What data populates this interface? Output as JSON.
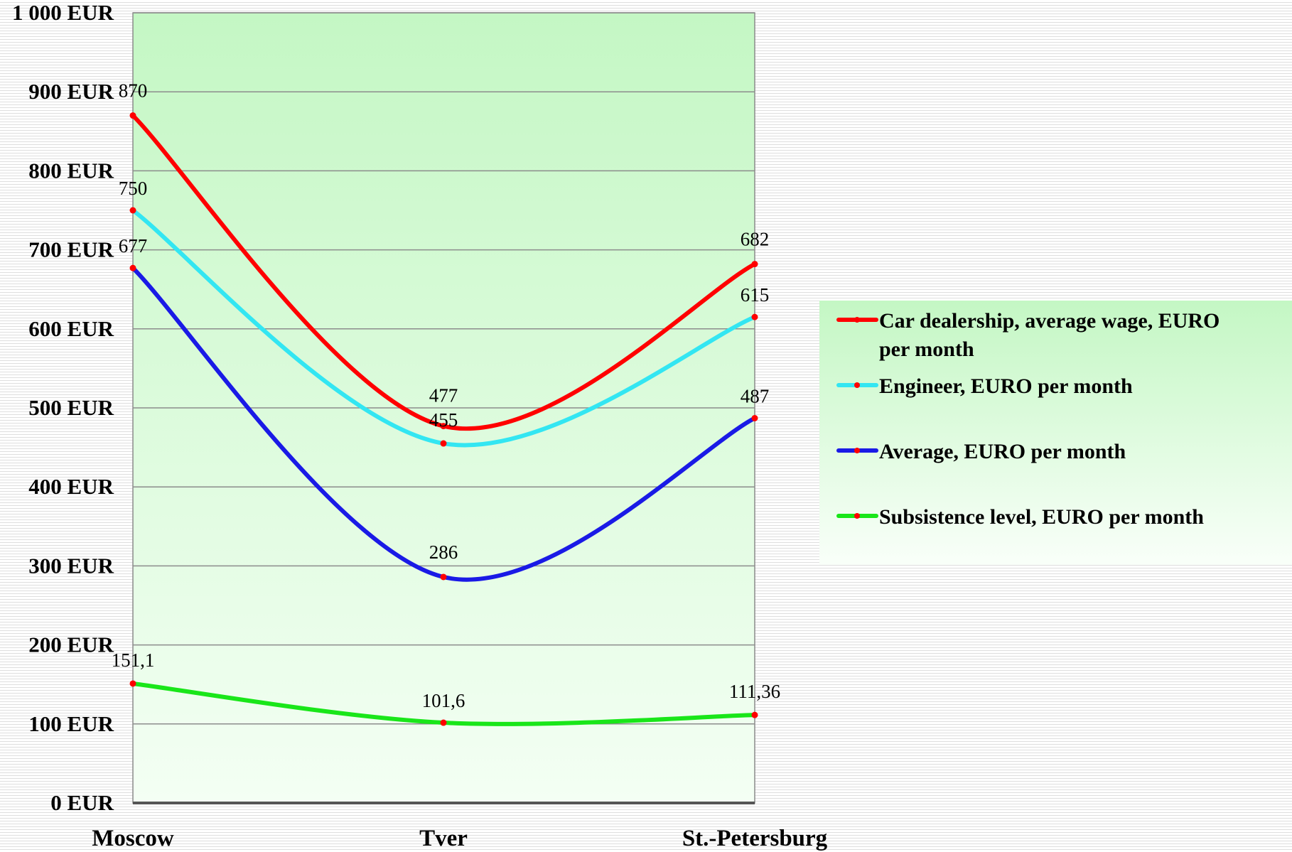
{
  "chart_data": {
    "type": "line",
    "title": "",
    "xlabel": "",
    "ylabel": "",
    "categories": [
      "Moscow",
      "Tver",
      "St.-Petersburg"
    ],
    "ylim": [
      0,
      1000
    ],
    "y_ticks": [
      0,
      100,
      200,
      300,
      400,
      500,
      600,
      700,
      800,
      900,
      1000
    ],
    "y_tick_labels": [
      "0 EUR",
      "100 EUR",
      "200 EUR",
      "300 EUR",
      "400 EUR",
      "500 EUR",
      "600 EUR",
      "700 EUR",
      "800 EUR",
      "900 EUR",
      "1 000 EUR"
    ],
    "grid": true,
    "smooth": true,
    "legend_position": "right",
    "plot_background": [
      "#c4f7c4",
      "#f4fff4"
    ],
    "series": [
      {
        "name": "Car dealership, average wage, EURO per month",
        "color": "#ff0000",
        "values": [
          870,
          477,
          682
        ],
        "labels": [
          "870",
          "477",
          "682"
        ]
      },
      {
        "name": "Engineer, EURO per month",
        "color": "#33e6f2",
        "values": [
          750,
          455,
          615
        ],
        "labels": [
          "750",
          "455",
          "615"
        ]
      },
      {
        "name": "Average, EURO per month",
        "color": "#1a1ae6",
        "values": [
          677,
          286,
          487
        ],
        "labels": [
          "677",
          "286",
          "487"
        ]
      },
      {
        "name": "Subsistence level, EURO per month",
        "color": "#19e619",
        "values": [
          151.1,
          101.6,
          111.36
        ],
        "labels": [
          "151,1",
          "101,6",
          "111,36"
        ]
      }
    ],
    "marker_color": "#ff0000"
  }
}
